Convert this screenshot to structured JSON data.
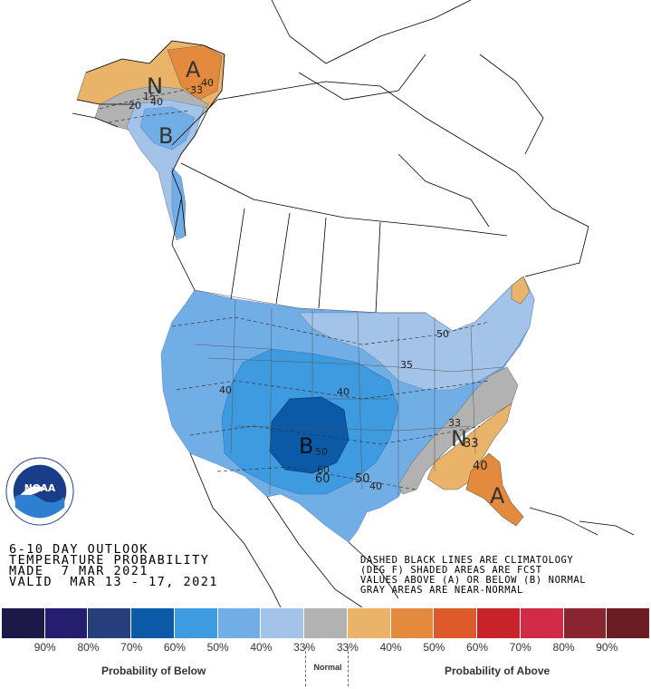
{
  "title_lines": [
    "6-10 DAY OUTLOOK",
    "TEMPERATURE PROBABILITY",
    "MADE  7 MAR 2021",
    "VALID  MAR 13 - 17, 2021"
  ],
  "note_lines": [
    "DASHED BLACK LINES ARE CLIMATOLOGY",
    "(DEG F) SHADED AREAS ARE FCST",
    "VALUES ABOVE (A) OR BELOW (B) NORMAL",
    "GRAY AREAS ARE NEAR-NORMAL"
  ],
  "map_labels": {
    "alaska_above": "A",
    "alaska_normal": "N",
    "alaska_below": "B",
    "us_below": "B",
    "se_normal": "N",
    "se_above": "A"
  },
  "map_values": {
    "ak_40a": "40",
    "ak_33a": "33",
    "ak_40b": "40",
    "ak_c15": "15",
    "ak_c20": "20",
    "us_50n": "50",
    "us_40w": "40",
    "us_40c": "40",
    "us_35": "35",
    "us_50c": "50",
    "us_60": "60",
    "us_50s": "50",
    "us_60s": "60",
    "us_40s": "40",
    "se_33a": "33",
    "se_33b": "33",
    "se_40": "40"
  },
  "legend": {
    "colors": [
      "#1c1848",
      "#251d6e",
      "#283f7e",
      "#0a5aa8",
      "#3f9be0",
      "#72aee6",
      "#a3c4e8",
      "#b2b2b2",
      "#e9b46a",
      "#e48a3e",
      "#df5a2a",
      "#c8232a",
      "#d22b47",
      "#8b2431",
      "#6a1d22"
    ],
    "percents": [
      "90%",
      "80%",
      "70%",
      "60%",
      "50%",
      "40%",
      "33%",
      "33%",
      "40%",
      "50%",
      "60%",
      "70%",
      "80%",
      "90%"
    ],
    "below_label": "Probability of Below",
    "normal_label": "Normal",
    "above_label": "Probability of Above"
  },
  "logo": {
    "text": "NOAA"
  }
}
